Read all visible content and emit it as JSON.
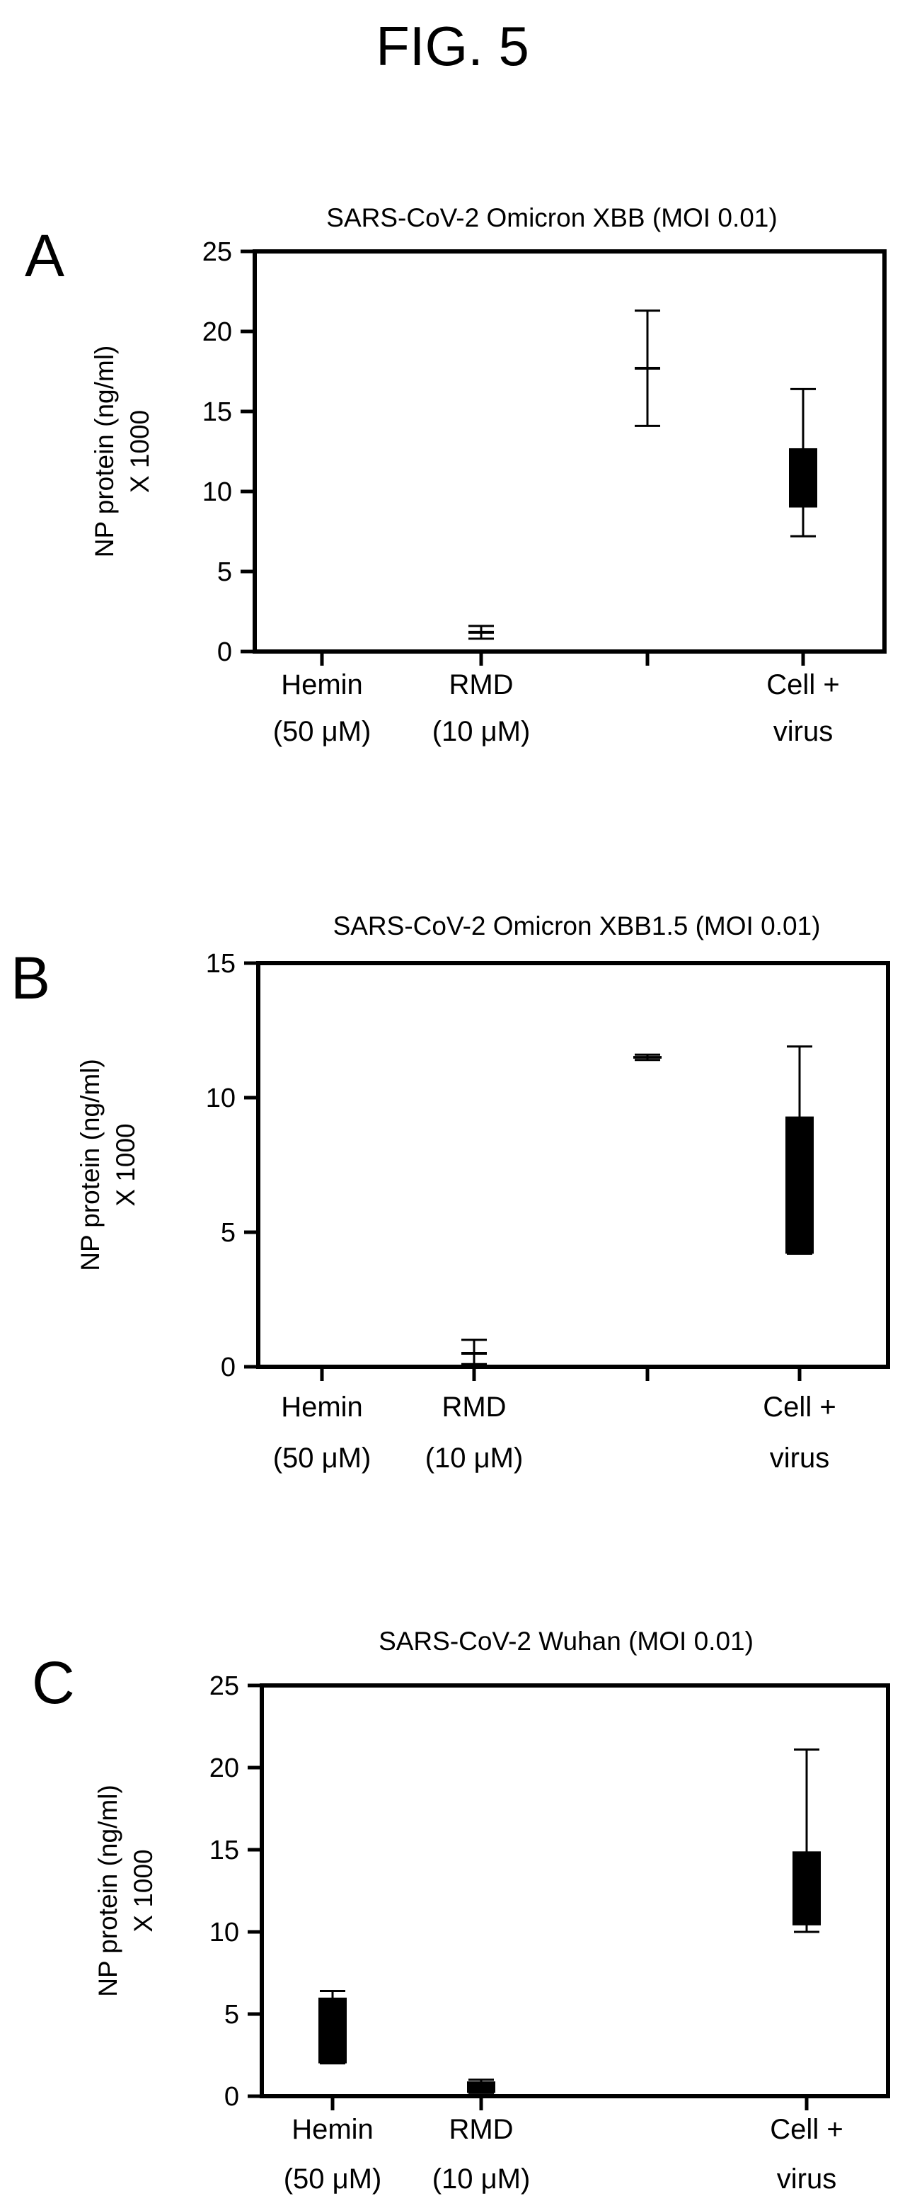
{
  "figure_title": "FIG. 5",
  "chart_data": [
    {
      "type": "bar",
      "panel_letter": "A",
      "title": "SARS-CoV-2 Omicron XBB (MOI 0.01)",
      "ylabel": [
        "NP protein (ng/ml)",
        "X 1000"
      ],
      "ylim": [
        0,
        25
      ],
      "yticks": [
        "0",
        "5",
        "10",
        "15",
        "20",
        "25"
      ],
      "categories": [
        {
          "label": [
            "Hemin",
            "(50 μM)"
          ],
          "low": 0,
          "high": 0,
          "q1": 0,
          "q3": 0
        },
        {
          "label": [
            "RMD",
            "(10 μM)"
          ],
          "low": 0.8,
          "high": 1.6,
          "q1": 1.2,
          "q3": 1.2
        },
        {
          "label": [],
          "low": 14.1,
          "high": 21.3,
          "q1": 17.7,
          "q3": 17.7
        },
        {
          "label": [
            "Cell +",
            "virus"
          ],
          "low": 7.2,
          "high": 16.4,
          "q1": 9.0,
          "q3": 12.7
        }
      ]
    },
    {
      "type": "bar",
      "panel_letter": "B",
      "title": "SARS-CoV-2 Omicron XBB1.5 (MOI 0.01)",
      "ylabel": [
        "NP protein (ng/ml)",
        "X 1000"
      ],
      "ylim": [
        0,
        15
      ],
      "yticks": [
        "0",
        "5",
        "10",
        "15"
      ],
      "categories": [
        {
          "label": [
            "Hemin",
            "(50 μM)"
          ],
          "low": 0,
          "high": 0,
          "q1": 0,
          "q3": 0
        },
        {
          "label": [
            "RMD",
            "(10 μM)"
          ],
          "low": 0.1,
          "high": 1.0,
          "q1": 0.5,
          "q3": 0.5
        },
        {
          "label": [],
          "low": 11.4,
          "high": 11.6,
          "q1": 11.45,
          "q3": 11.55
        },
        {
          "label": [
            "Cell +",
            "virus"
          ],
          "low": 4.2,
          "high": 11.9,
          "q1": 4.2,
          "q3": 9.3
        }
      ]
    },
    {
      "type": "bar",
      "panel_letter": "C",
      "title": "SARS-CoV-2 Wuhan (MOI 0.01)",
      "ylabel": [
        "NP protein (ng/ml)",
        "X 1000"
      ],
      "ylim": [
        0,
        25
      ],
      "yticks": [
        "0",
        "5",
        "10",
        "15",
        "20",
        "25"
      ],
      "categories": [
        {
          "label": [
            "Hemin",
            "(50 μM)"
          ],
          "low": 2.0,
          "high": 6.4,
          "q1": 2.0,
          "q3": 6.0
        },
        {
          "label": [
            "RMD",
            "(10 μM)"
          ],
          "low": 0.2,
          "high": 1.0,
          "q1": 0.2,
          "q3": 0.9
        },
        {
          "label": [],
          "low": null,
          "high": null,
          "q1": null,
          "q3": null
        },
        {
          "label": [
            "Cell +",
            "virus"
          ],
          "low": 10.0,
          "high": 21.1,
          "q1": 10.4,
          "q3": 14.9
        }
      ]
    }
  ]
}
